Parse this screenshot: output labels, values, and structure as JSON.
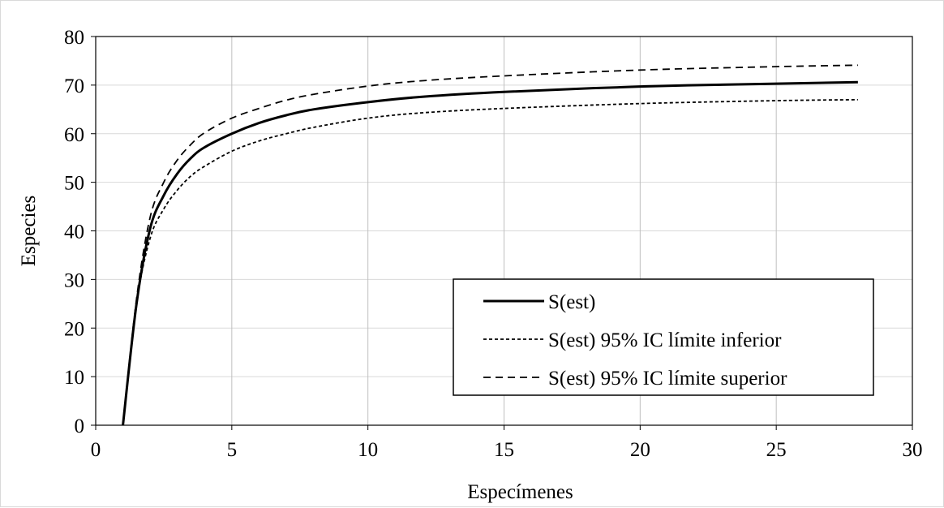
{
  "chart_data": {
    "type": "line",
    "title": "",
    "xlabel": "Especímenes",
    "ylabel": "Especies",
    "xlim": [
      0,
      30
    ],
    "ylim": [
      0,
      80
    ],
    "xticks": [
      0,
      5,
      10,
      15,
      20,
      25,
      30
    ],
    "yticks": [
      0,
      10,
      20,
      30,
      40,
      50,
      60,
      70,
      80
    ],
    "grid": "vertical",
    "legend_position": "bottom-right",
    "series": [
      {
        "name": "S(est)",
        "style": "solid",
        "color": "#000000",
        "x": [
          1,
          1.5,
          2,
          2.5,
          3,
          3.5,
          4,
          5,
          6,
          7,
          8,
          10,
          12,
          15,
          20,
          25,
          28
        ],
        "y": [
          0,
          25,
          40.5,
          47.3,
          51.8,
          55.0,
          57.2,
          60.0,
          62.2,
          63.8,
          65.0,
          66.5,
          67.6,
          68.6,
          69.7,
          70.3,
          70.6
        ]
      },
      {
        "name": "S(est) 95% IC límite inferior",
        "style": "dotted",
        "color": "#000000",
        "x": [
          1,
          1.5,
          2,
          2.5,
          3,
          3.5,
          4,
          5,
          6,
          7,
          8,
          10,
          12,
          15,
          20,
          25,
          28
        ],
        "y": [
          0,
          25,
          38.5,
          44.5,
          48.4,
          51.3,
          53.3,
          56.4,
          58.5,
          60.0,
          61.3,
          63.2,
          64.3,
          65.2,
          66.2,
          66.8,
          67.0
        ]
      },
      {
        "name": "S(est) 95% IC límite superior",
        "style": "dashed",
        "color": "#000000",
        "x": [
          1,
          1.5,
          2,
          2.5,
          3,
          3.5,
          4,
          5,
          6,
          7,
          8,
          10,
          12,
          15,
          20,
          25,
          28
        ],
        "y": [
          0,
          26,
          42.8,
          50.0,
          54.6,
          57.8,
          60.2,
          63.2,
          65.2,
          66.9,
          68.1,
          69.8,
          70.9,
          71.9,
          73.1,
          73.8,
          74.1
        ]
      }
    ]
  }
}
